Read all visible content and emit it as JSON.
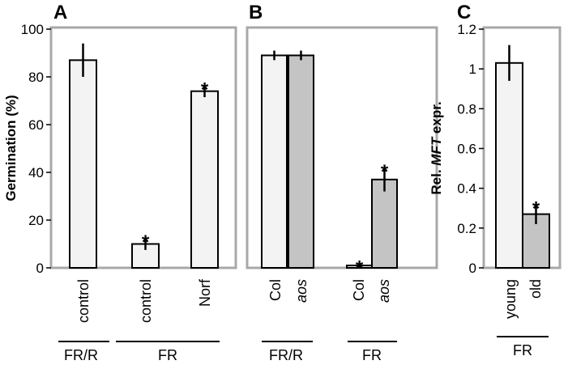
{
  "colors": {
    "frame": "#a8a8a8",
    "light_bar": "#f3f3f3",
    "grey_bar": "#c4c4c4",
    "ink": "#000000"
  },
  "chart_data": [
    {
      "panel": "A",
      "type": "bar",
      "ylabel": "Germination (%)",
      "ylim": [
        0,
        100
      ],
      "yticks": [
        "0",
        "20",
        "40",
        "60",
        "80",
        "100"
      ],
      "categories": [
        "control",
        "control",
        "Norf"
      ],
      "values": [
        87,
        10,
        74
      ],
      "errors": [
        7,
        2.5,
        2.5
      ],
      "significant": [
        false,
        true,
        true
      ],
      "groups": [
        {
          "label": "FR/R",
          "members": [
            0
          ]
        },
        {
          "label": "FR",
          "members": [
            1,
            2
          ]
        }
      ]
    },
    {
      "panel": "B",
      "type": "bar",
      "ylim": [
        0,
        100
      ],
      "categories": [
        "Col",
        "aos",
        "Col",
        "aos"
      ],
      "values": [
        89,
        89,
        1,
        37
      ],
      "errors": [
        2,
        2,
        0.8,
        5
      ],
      "significant": [
        false,
        false,
        true,
        true
      ],
      "groups": [
        {
          "label": "FR/R",
          "members": [
            0,
            1
          ]
        },
        {
          "label": "FR",
          "members": [
            2,
            3
          ]
        }
      ]
    },
    {
      "panel": "C",
      "type": "bar",
      "ylabel_parts": [
        "Rel. ",
        "MFT",
        " expr."
      ],
      "ylim": [
        0,
        1.2
      ],
      "yticks": [
        "0",
        "0.2",
        "0.4",
        "0.6",
        "0.8",
        "1",
        "1.2"
      ],
      "categories": [
        "young",
        "old"
      ],
      "values": [
        1.03,
        0.27
      ],
      "errors": [
        0.09,
        0.05
      ],
      "significant": [
        false,
        true
      ],
      "groups": [
        {
          "label": "FR",
          "members": [
            0,
            1
          ]
        }
      ]
    }
  ]
}
